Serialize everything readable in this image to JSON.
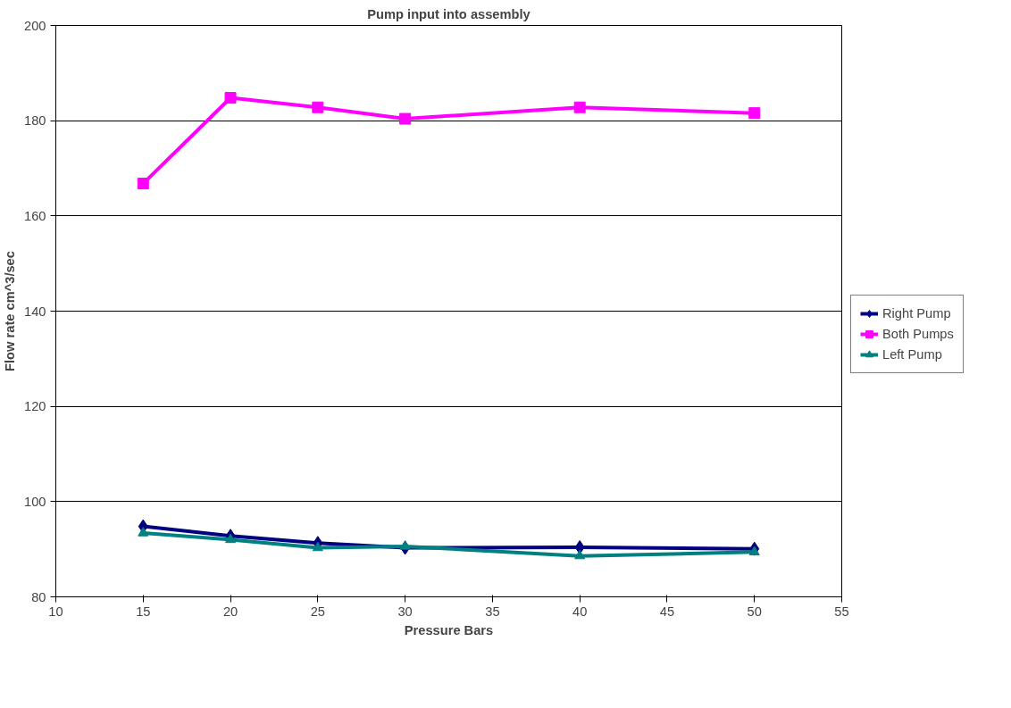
{
  "chart_data": {
    "type": "line",
    "title": "Pump input into assembly",
    "xlabel": "Pressure Bars",
    "ylabel": "Flow rate cm^3/sec",
    "x": [
      15,
      20,
      25,
      30,
      40,
      50
    ],
    "series": [
      {
        "name": "Right Pump",
        "color": "#000080",
        "marker": "diamond",
        "values": [
          94.8,
          92.8,
          91.3,
          90.3,
          90.4,
          90.1
        ]
      },
      {
        "name": "Both Pumps",
        "color": "#ff00ff",
        "marker": "square",
        "values": [
          166.8,
          184.8,
          182.8,
          180.4,
          182.8,
          181.6
        ]
      },
      {
        "name": "Left Pump",
        "color": "#008080",
        "marker": "triangle",
        "values": [
          93.4,
          92.0,
          90.3,
          90.6,
          88.6,
          89.4
        ]
      }
    ],
    "xlim": [
      10,
      55
    ],
    "xticks": [
      10,
      15,
      20,
      25,
      30,
      35,
      40,
      45,
      50,
      55
    ],
    "ylim": [
      80,
      200
    ],
    "yticks": [
      80,
      100,
      120,
      140,
      160,
      180,
      200
    ],
    "grid": "y",
    "legend": "right",
    "line_style": "solid"
  }
}
